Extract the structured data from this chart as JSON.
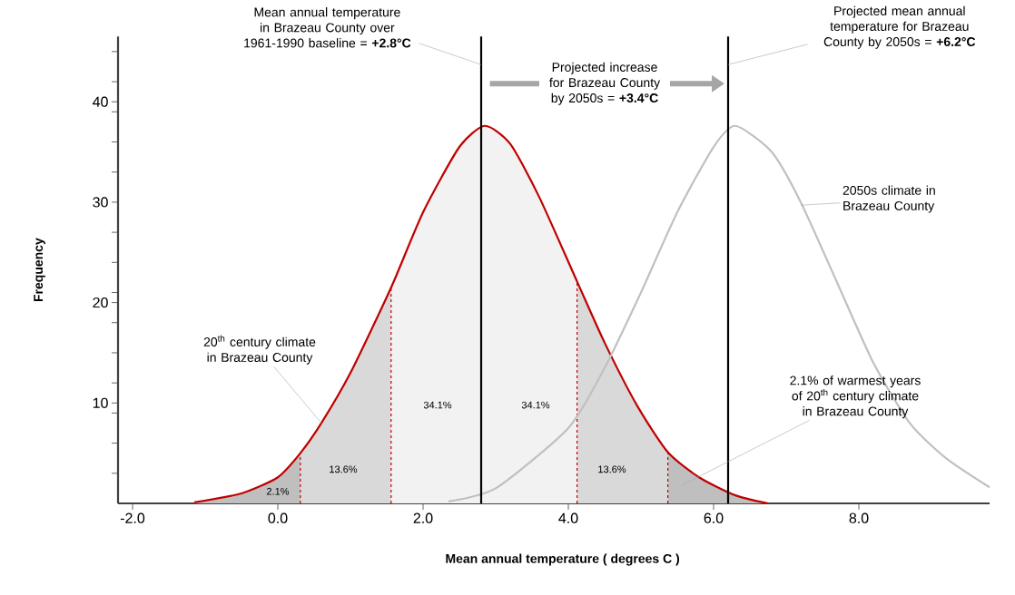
{
  "chart_data": {
    "type": "line",
    "xlabel": "Mean annual temperature ( degrees C )",
    "ylabel": "Frequency",
    "xlim": [
      -2.2,
      9.8
    ],
    "ylim": [
      0,
      46.5
    ],
    "xticks": [
      {
        "value": -2,
        "label": "-2.0"
      },
      {
        "value": 0,
        "label": "0.0"
      },
      {
        "value": 2,
        "label": "2.0"
      },
      {
        "value": 4,
        "label": "4.0"
      },
      {
        "value": 6,
        "label": "6.0"
      },
      {
        "value": 8,
        "label": "8.0"
      }
    ],
    "yticks": [
      {
        "value": 3,
        "label": null
      },
      {
        "value": 6,
        "label": null
      },
      {
        "value": 9,
        "label": null
      },
      10,
      {
        "value": 12,
        "label": null
      },
      {
        "value": 15,
        "label": null
      },
      {
        "value": 18,
        "label": null
      },
      20,
      {
        "value": 21,
        "label": null
      },
      {
        "value": 24,
        "label": null
      },
      {
        "value": 27,
        "label": null
      },
      30,
      {
        "value": 33,
        "label": null
      },
      {
        "value": 36,
        "label": null
      },
      {
        "value": 39,
        "label": null
      },
      40,
      {
        "value": 42,
        "label": null
      },
      {
        "value": 45,
        "label": null
      }
    ],
    "series": [
      {
        "type": "area",
        "color": "#bfbfbf",
        "x": [
          -1.15,
          -0.5,
          0,
          0.31
        ],
        "values": [
          0.1,
          1.0,
          2.6,
          5.0
        ]
      },
      {
        "type": "area",
        "color": "#d9d9d9",
        "x": [
          0.31,
          0.6,
          1.0,
          1.56
        ],
        "values": [
          5.0,
          8.0,
          13.0,
          21.5
        ]
      },
      {
        "type": "area",
        "color": "#f2f2f2",
        "x": [
          1.56,
          2.0,
          2.5,
          2.85,
          3.2,
          3.6,
          4.12
        ],
        "values": [
          21.5,
          29,
          35.5,
          37.6,
          35.8,
          30.5,
          22.1
        ]
      },
      {
        "type": "area",
        "color": "#d9d9d9",
        "x": [
          4.12,
          4.5,
          4.95,
          5.37
        ],
        "values": [
          22.1,
          16,
          9.7,
          5.1
        ]
      },
      {
        "type": "area",
        "color": "#bfbfbf",
        "x": [
          5.37,
          5.8,
          6.3,
          6.75
        ],
        "values": [
          5.1,
          2.6,
          0.8,
          0
        ]
      },
      {
        "color": "#c00000",
        "x": [
          -1.15,
          -0.5,
          0,
          0.31,
          0.6,
          1.0,
          1.56,
          2.0,
          2.5,
          2.85,
          3.2,
          3.6,
          4.12,
          4.5,
          4.95,
          5.37,
          5.8,
          6.3,
          6.75
        ],
        "values": [
          0.1,
          1.0,
          2.6,
          5.0,
          8.0,
          13.0,
          21.5,
          29,
          35.5,
          37.6,
          35.8,
          30.5,
          22.1,
          16,
          9.7,
          5.1,
          2.6,
          0.8,
          0
        ]
      },
      {
        "type": "line",
        "color": "#c00000",
        "line_style": "dashed",
        "x": [
          0.31,
          0.31
        ],
        "values": [
          0,
          5.0
        ]
      },
      {
        "type": "line",
        "color": "#c00000",
        "line_style": "dashed",
        "x": [
          1.56,
          1.56
        ],
        "values": [
          0,
          21.5
        ]
      },
      {
        "type": "line",
        "color": "#c00000",
        "line_style": "dashed",
        "x": [
          4.12,
          4.12
        ],
        "values": [
          0,
          22.1
        ]
      },
      {
        "type": "line",
        "color": "#c00000",
        "line_style": "dashed",
        "x": [
          5.37,
          5.37
        ],
        "values": [
          0,
          5.1
        ]
      },
      {
        "color": "#c0c0c0",
        "x": [
          2.35,
          3.0,
          4.0,
          4.5,
          5.0,
          5.5,
          6.0,
          6.3,
          6.8,
          7.2,
          7.7,
          8.2,
          8.7,
          9.2,
          9.8
        ],
        "values": [
          0.2,
          1.5,
          7.5,
          13.5,
          21,
          29,
          35.5,
          37.6,
          35,
          30,
          22,
          14,
          8,
          4.5,
          1.6
        ]
      }
    ],
    "ref_lines": [
      {
        "axis": "x",
        "value": 2.8,
        "color": "#000000",
        "label": "Mean annual temperature in Brazeau County over 1961-1990 baseline = **+2.8°C**"
      },
      {
        "axis": "x",
        "value": 6.2,
        "color": "#000000",
        "label": "Projected mean annual temperature for Brazeau County by 2050s = **+6.2°C**"
      }
    ],
    "annotations": [
      "Projected increase for Brazeau County by 2050s = **+3.4°C**",
      {
        "text": "20$^{th}$ century climate in Brazeau County",
        "x": 0.6,
        "y": 8.0
      },
      {
        "text": "2050s climate in Brazeau County",
        "x": 7.2,
        "y": 29.7
      },
      "2.1% of warmest years of 20$^{th}$ century climate in Brazeau County",
      "2.1%",
      "13.6%",
      "34.1%",
      "34.1%",
      "13.6%"
    ]
  }
}
